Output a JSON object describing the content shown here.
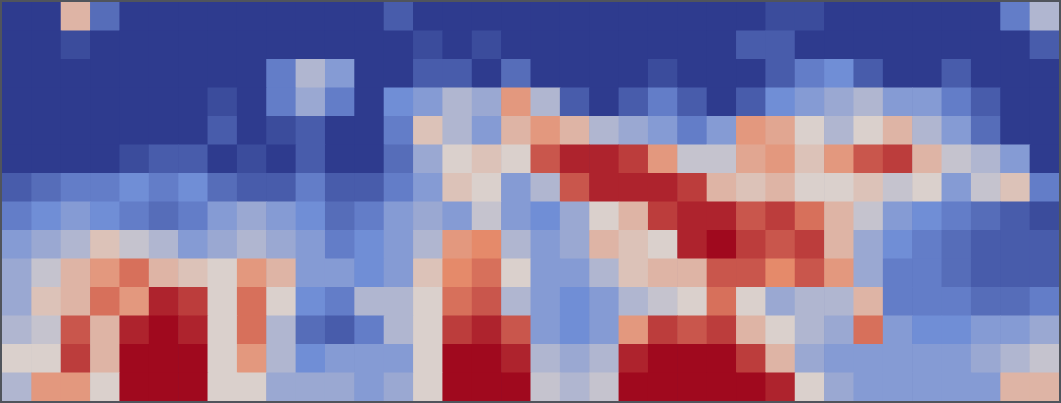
{
  "chart_data": {
    "type": "heatmap",
    "tick_labels": false,
    "xlim": [
      0,
      36
    ],
    "ylim": [
      0,
      14
    ],
    "color_range": [
      0,
      1
    ],
    "cells": [
      [
        0,
        0,
        0.6,
        0.15,
        0,
        0,
        0,
        0,
        0,
        0,
        0,
        0,
        0,
        0.1,
        0,
        0,
        0,
        0,
        0,
        0,
        0,
        0,
        0,
        0,
        0,
        0,
        0.05,
        0.05,
        0,
        0,
        0,
        0,
        0,
        0,
        0.2,
        0.4
      ],
      [
        0,
        0,
        0.05,
        0,
        0,
        0,
        0,
        0,
        0,
        0,
        0,
        0,
        0,
        0,
        0.05,
        0,
        0.05,
        0,
        0,
        0,
        0,
        0,
        0,
        0,
        0,
        0.1,
        0.1,
        0,
        0,
        0,
        0,
        0,
        0,
        0,
        0,
        0.1
      ],
      [
        0,
        0,
        0,
        0,
        0,
        0,
        0,
        0,
        0,
        0.2,
        0.4,
        0.3,
        0,
        0,
        0.1,
        0.1,
        0,
        0.15,
        0,
        0,
        0,
        0,
        0.05,
        0,
        0,
        0,
        0.1,
        0.2,
        0.25,
        0.1,
        0,
        0,
        0.1,
        0,
        0,
        0
      ],
      [
        0,
        0,
        0,
        0,
        0,
        0,
        0,
        0.05,
        0,
        0.2,
        0.35,
        0.2,
        0,
        0.25,
        0.3,
        0.4,
        0.35,
        0.7,
        0.4,
        0.1,
        0,
        0.1,
        0.2,
        0.1,
        0,
        0.1,
        0.25,
        0.3,
        0.35,
        0.4,
        0.3,
        0.3,
        0.2,
        0.1,
        0,
        0
      ],
      [
        0,
        0,
        0,
        0,
        0,
        0,
        0,
        0.1,
        0,
        0.05,
        0.1,
        0,
        0,
        0.2,
        0.55,
        0.4,
        0.3,
        0.6,
        0.7,
        0.6,
        0.4,
        0.35,
        0.3,
        0.2,
        0.3,
        0.7,
        0.65,
        0.5,
        0.4,
        0.5,
        0.6,
        0.4,
        0.3,
        0.15,
        0,
        0
      ],
      [
        0,
        0,
        0,
        0,
        0.05,
        0.1,
        0.1,
        0,
        0.05,
        0,
        0.1,
        0,
        0,
        0.15,
        0.35,
        0.5,
        0.55,
        0.5,
        0.85,
        0.95,
        0.95,
        0.9,
        0.7,
        0.45,
        0.45,
        0.65,
        0.7,
        0.55,
        0.7,
        0.85,
        0.9,
        0.6,
        0.45,
        0.4,
        0.3,
        0
      ],
      [
        0.1,
        0.15,
        0.2,
        0.2,
        0.25,
        0.2,
        0.25,
        0.15,
        0.1,
        0.1,
        0.2,
        0.1,
        0.1,
        0.2,
        0.3,
        0.55,
        0.5,
        0.3,
        0.4,
        0.85,
        0.95,
        0.95,
        0.95,
        0.9,
        0.6,
        0.55,
        0.6,
        0.5,
        0.5,
        0.55,
        0.45,
        0.5,
        0.3,
        0.45,
        0.55,
        0.2
      ],
      [
        0.2,
        0.25,
        0.3,
        0.25,
        0.2,
        0.15,
        0.2,
        0.3,
        0.35,
        0.3,
        0.25,
        0.15,
        0.2,
        0.3,
        0.35,
        0.3,
        0.45,
        0.3,
        0.25,
        0.35,
        0.5,
        0.6,
        0.9,
        0.95,
        0.95,
        0.85,
        0.9,
        0.8,
        0.6,
        0.45,
        0.3,
        0.25,
        0.2,
        0.15,
        0.1,
        0.05
      ],
      [
        0.3,
        0.35,
        0.4,
        0.55,
        0.45,
        0.4,
        0.3,
        0.35,
        0.4,
        0.35,
        0.3,
        0.2,
        0.25,
        0.3,
        0.4,
        0.7,
        0.75,
        0.4,
        0.3,
        0.35,
        0.6,
        0.55,
        0.5,
        0.95,
        1,
        0.9,
        0.85,
        0.9,
        0.6,
        0.35,
        0.25,
        0.2,
        0.15,
        0.1,
        0.1,
        0.1
      ],
      [
        0.35,
        0.45,
        0.6,
        0.7,
        0.8,
        0.6,
        0.55,
        0.5,
        0.7,
        0.6,
        0.3,
        0.3,
        0.25,
        0.3,
        0.55,
        0.75,
        0.8,
        0.5,
        0.3,
        0.3,
        0.4,
        0.55,
        0.6,
        0.6,
        0.85,
        0.85,
        0.75,
        0.85,
        0.7,
        0.35,
        0.2,
        0.2,
        0.15,
        0.1,
        0.1,
        0.1
      ],
      [
        0.35,
        0.55,
        0.6,
        0.8,
        0.7,
        0.95,
        0.9,
        0.5,
        0.8,
        0.5,
        0.25,
        0.2,
        0.4,
        0.4,
        0.5,
        0.8,
        0.85,
        0.4,
        0.3,
        0.25,
        0.3,
        0.4,
        0.45,
        0.5,
        0.8,
        0.5,
        0.35,
        0.4,
        0.4,
        0.6,
        0.2,
        0.2,
        0.2,
        0.15,
        0.15,
        0.2
      ],
      [
        0.4,
        0.45,
        0.85,
        0.6,
        0.95,
        1,
        0.95,
        0.5,
        0.8,
        0.4,
        0.15,
        0.1,
        0.2,
        0.4,
        0.5,
        0.9,
        0.95,
        0.85,
        0.3,
        0.25,
        0.3,
        0.7,
        0.9,
        0.85,
        0.9,
        0.6,
        0.5,
        0.4,
        0.35,
        0.8,
        0.3,
        0.25,
        0.25,
        0.3,
        0.3,
        0.35
      ],
      [
        0.5,
        0.5,
        0.9,
        0.6,
        1,
        1,
        1,
        0.5,
        0.7,
        0.4,
        0.25,
        0.3,
        0.3,
        0.3,
        0.5,
        1,
        1,
        0.95,
        0.4,
        0.35,
        0.4,
        0.95,
        1,
        1,
        1,
        0.9,
        0.6,
        0.35,
        0.3,
        0.3,
        0.3,
        0.3,
        0.3,
        0.35,
        0.4,
        0.45
      ],
      [
        0.4,
        0.7,
        0.7,
        0.5,
        1,
        1,
        1,
        0.5,
        0.5,
        0.35,
        0.35,
        0.35,
        0.3,
        0.35,
        0.5,
        1,
        1,
        1,
        0.45,
        0.4,
        0.45,
        1,
        1,
        1,
        1,
        1,
        0.95,
        0.5,
        0.35,
        0.3,
        0.3,
        0.3,
        0.3,
        0.3,
        0.6,
        0.6
      ]
    ]
  }
}
